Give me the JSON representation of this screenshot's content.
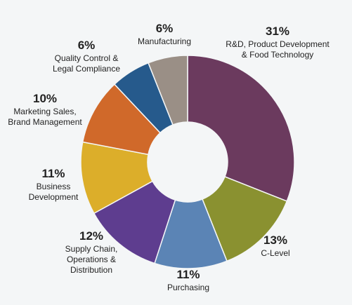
{
  "chart_data": {
    "type": "donut",
    "categories": [
      "R&D, Product Development\n& Food Technology",
      "C-Level",
      "Purchasing",
      "Supply Chain,\nOperations &\nDistribution",
      "Business\nDevelopment",
      "Marketing Sales,\nBrand Management",
      "Quality Control &\nLegal Compliance",
      "Manufacturing"
    ],
    "values": [
      31,
      13,
      11,
      12,
      11,
      10,
      6,
      6
    ],
    "value_labels": [
      "31%",
      "13%",
      "11%",
      "12%",
      "11%",
      "10%",
      "6%",
      "6%"
    ],
    "colors": [
      "#6b3a5e",
      "#8a9130",
      "#5b84b5",
      "#5e3d8f",
      "#dcae2a",
      "#d0692a",
      "#265a8c",
      "#9a8f86"
    ]
  }
}
